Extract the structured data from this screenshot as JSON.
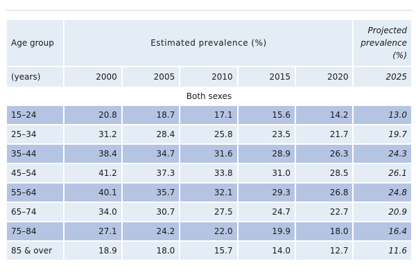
{
  "header": {
    "age_group_label": "Age group",
    "years_label": "(years)",
    "estimated_label": "Estimated prevalence (%)",
    "projected_label_lines": [
      "Projected",
      "prevalence",
      "(%)"
    ]
  },
  "section_label": "Both sexes",
  "chart_data": {
    "type": "table",
    "columns": [
      "Age group (years)",
      "2000",
      "2005",
      "2010",
      "2015",
      "2020",
      "2025"
    ],
    "years": [
      "2000",
      "2005",
      "2010",
      "2015",
      "2020",
      "2025"
    ],
    "projected_year": "2025",
    "rows": [
      {
        "age": "15–24",
        "values": [
          "20.8",
          "18.7",
          "17.1",
          "15.6",
          "14.2",
          "13.0"
        ]
      },
      {
        "age": "25–34",
        "values": [
          "31.2",
          "28.4",
          "25.8",
          "23.5",
          "21.7",
          "19.7"
        ]
      },
      {
        "age": "35–44",
        "values": [
          "38.4",
          "34.7",
          "31.6",
          "28.9",
          "26.3",
          "24.3"
        ]
      },
      {
        "age": "45–54",
        "values": [
          "41.2",
          "37.3",
          "33.8",
          "31.0",
          "28.5",
          "26.1"
        ]
      },
      {
        "age": "55–64",
        "values": [
          "40.1",
          "35.7",
          "32.1",
          "29.3",
          "26.8",
          "24.8"
        ]
      },
      {
        "age": "65–74",
        "values": [
          "34.0",
          "30.7",
          "27.5",
          "24.7",
          "22.7",
          "20.9"
        ]
      },
      {
        "age": "75–84",
        "values": [
          "27.1",
          "24.2",
          "22.0",
          "19.9",
          "18.0",
          "16.4"
        ]
      },
      {
        "age": "85 & over",
        "values": [
          "18.9",
          "18.0",
          "15.7",
          "14.0",
          "12.7",
          "11.6"
        ]
      }
    ]
  },
  "colors": {
    "header_background": "#e4ecf5",
    "row_dark": "#b5c4e3",
    "row_light": "#e4ecf5"
  }
}
